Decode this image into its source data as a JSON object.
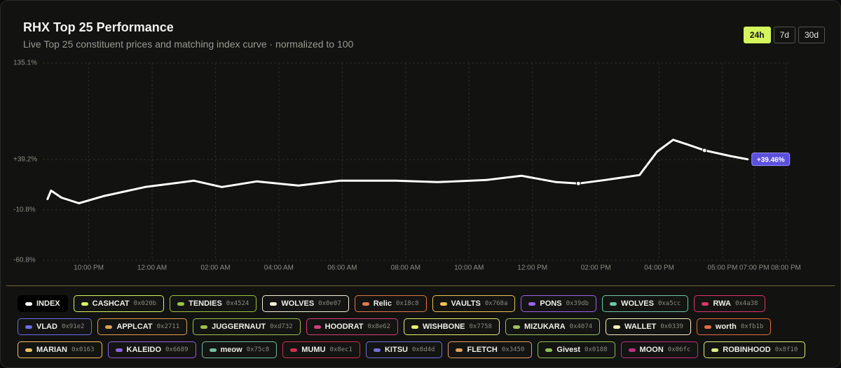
{
  "chart_data": {
    "type": "line",
    "title": "RHX Top 25 Performance",
    "subtitle": "Live Top 25 constituent prices and matching index curve · normalized to 100",
    "ranges": [
      "24h",
      "7d",
      "30d"
    ],
    "active_range": "24h",
    "xlim": [
      20.55,
      44.1
    ],
    "xticks": [
      {
        "value": 22,
        "label": "10:00 PM"
      },
      {
        "value": 24,
        "label": "12:00 AM"
      },
      {
        "value": 26,
        "label": "02:00 AM"
      },
      {
        "value": 28,
        "label": "04:00 AM"
      },
      {
        "value": 30,
        "label": "06:00 AM"
      },
      {
        "value": 32,
        "label": "08:00 AM"
      },
      {
        "value": 34,
        "label": "10:00 AM"
      },
      {
        "value": 36,
        "label": "12:00 PM"
      },
      {
        "value": 38,
        "label": "02:00 PM"
      },
      {
        "value": 40,
        "label": "04:00 PM"
      },
      {
        "value": 42,
        "label": "05:00 PM"
      },
      {
        "value": 43,
        "label": "07:00 PM"
      },
      {
        "value": 44,
        "label": "08:00 PM"
      }
    ],
    "ylim": [
      -60.8,
      135.1
    ],
    "yticks": [
      {
        "value": 135.1,
        "label": "135.1%"
      },
      {
        "value": 39.2,
        "label": "+39.2%"
      },
      {
        "value": -10.8,
        "label": "-10.8%"
      },
      {
        "value": -60.8,
        "label": "-60.8%"
      }
    ],
    "grid": true,
    "x": [
      20.7,
      20.81,
      21.14,
      21.69,
      22.46,
      23.78,
      25.32,
      26.2,
      27.3,
      28.62,
      29.93,
      31.69,
      33.01,
      34.55,
      35.65,
      36.75,
      37.45,
      38.29,
      39.38,
      39.93,
      40.44,
      40.92,
      41.43,
      42.24,
      42.79
    ],
    "series": [
      {
        "name": "INDEX",
        "color": "#ffffff",
        "values": [
          0,
          8.4,
          1.4,
          -4.2,
          2.8,
          11.9,
          18.2,
          11.9,
          17.5,
          13.3,
          18.2,
          18.2,
          16.8,
          18.9,
          23.1,
          16.8,
          15.4,
          18.9,
          23.8,
          46.9,
          58.8,
          53.9,
          48.3,
          42.7,
          39.46
        ],
        "markers": [
          16,
          22
        ]
      }
    ],
    "end_label": "+39.46%",
    "legend": [
      {
        "name": "INDEX",
        "color": "#ffffff",
        "active": true
      },
      {
        "name": "CASHCAT",
        "address": "0x020b",
        "color": "#d4f65c"
      },
      {
        "name": "TENDIES",
        "address": "0x4524",
        "color": "#9bc53d"
      },
      {
        "name": "WOLVES",
        "address": "0x0e07",
        "color": "#f4f0d8"
      },
      {
        "name": "Relic",
        "address": "0x18c8",
        "color": "#e07a4a"
      },
      {
        "name": "VAULTS",
        "address": "0x768a",
        "color": "#f2c14e"
      },
      {
        "name": "PONS",
        "address": "0x39db",
        "color": "#a060f0"
      },
      {
        "name": "WOLVES",
        "address": "0xa5cc",
        "color": "#6fc7a8"
      },
      {
        "name": "RWA",
        "address": "0x4a38",
        "color": "#e0356c"
      },
      {
        "name": "VLAD",
        "address": "0x91e2",
        "color": "#6c6cf0"
      },
      {
        "name": "APPLCAT",
        "address": "0x2711",
        "color": "#e0a050"
      },
      {
        "name": "JUGGERNAUT",
        "address": "0xd732",
        "color": "#a0c050"
      },
      {
        "name": "HOODRAT",
        "address": "0x8e62",
        "color": "#d04080"
      },
      {
        "name": "WISHBONE",
        "address": "0x7758",
        "color": "#e8f070"
      },
      {
        "name": "MIZUKARA",
        "address": "0x4074",
        "color": "#a0c060"
      },
      {
        "name": "WALLET",
        "address": "0x0339",
        "color": "#f8f0c0"
      },
      {
        "name": "worth",
        "address": "0xfb1b",
        "color": "#e07040"
      },
      {
        "name": "MARIAN",
        "address": "0x0163",
        "color": "#f0c060"
      },
      {
        "name": "KALEIDO",
        "address": "0x6689",
        "color": "#9060e0"
      },
      {
        "name": "meow",
        "address": "0x75c8",
        "color": "#70c0a0"
      },
      {
        "name": "MUMU",
        "address": "0x8ec1",
        "color": "#d03050"
      },
      {
        "name": "KITSU",
        "address": "0x8d4d",
        "color": "#7070e0"
      },
      {
        "name": "FLETCH",
        "address": "0x3450",
        "color": "#e0a060"
      },
      {
        "name": "Givest",
        "address": "0x0188",
        "color": "#90c050"
      },
      {
        "name": "MOON",
        "address": "0x06fc",
        "color": "#c03080"
      },
      {
        "name": "ROBINHOOD",
        "address": "0x8f10",
        "color": "#e0f080"
      }
    ]
  }
}
